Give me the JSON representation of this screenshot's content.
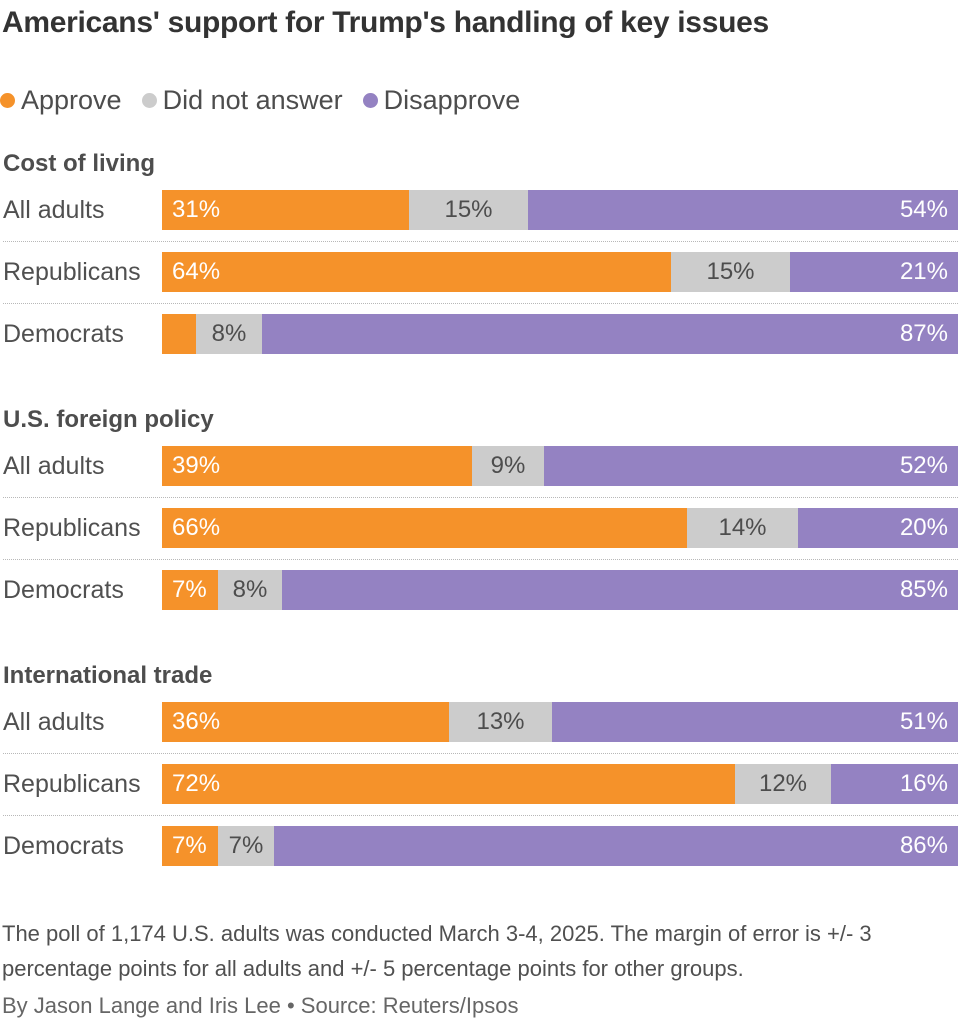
{
  "chart_data": {
    "type": "bar",
    "orientation": "horizontal",
    "stacked": true,
    "title": "Americans' support for Trump's handling of key issues",
    "legend": [
      {
        "name": "Approve",
        "color": "#f5922a"
      },
      {
        "name": "Did not answer",
        "color": "#cccccc"
      },
      {
        "name": "Disapprove",
        "color": "#9482c2"
      }
    ],
    "legend_position": "top-left",
    "xlim": [
      0,
      100
    ],
    "groups": [
      {
        "title": "Cost of living",
        "rows": [
          {
            "label": "All adults",
            "values": [
              31,
              15,
              54
            ],
            "labels": [
              "31%",
              "15%",
              "54%"
            ]
          },
          {
            "label": "Republicans",
            "values": [
              64,
              15,
              21
            ],
            "labels": [
              "64%",
              "15%",
              "21%"
            ]
          },
          {
            "label": "Democrats",
            "values": [
              4.3,
              8.3,
              87.4
            ],
            "labels": [
              "",
              "8%",
              "87%"
            ]
          }
        ]
      },
      {
        "title": "U.S. foreign policy",
        "rows": [
          {
            "label": "All adults",
            "values": [
              39,
              9,
              52
            ],
            "labels": [
              "39%",
              "9%",
              "52%"
            ]
          },
          {
            "label": "Republicans",
            "values": [
              66,
              14,
              20
            ],
            "labels": [
              "66%",
              "14%",
              "20%"
            ]
          },
          {
            "label": "Democrats",
            "values": [
              7,
              8,
              85
            ],
            "labels": [
              "7%",
              "8%",
              "85%"
            ]
          }
        ]
      },
      {
        "title": "International trade",
        "rows": [
          {
            "label": "All adults",
            "values": [
              36,
              13,
              51
            ],
            "labels": [
              "36%",
              "13%",
              "51%"
            ]
          },
          {
            "label": "Republicans",
            "values": [
              72,
              12,
              16
            ],
            "labels": [
              "72%",
              "12%",
              "16%"
            ]
          },
          {
            "label": "Democrats",
            "values": [
              7,
              7,
              86
            ],
            "labels": [
              "7%",
              "7%",
              "86%"
            ]
          }
        ]
      }
    ]
  },
  "note": "The poll of 1,174 U.S. adults was conducted March 3-4, 2025. The margin of error is +/- 3 percentage points for all adults and +/- 5 percentage points for other groups.",
  "byline": "By Jason Lange and Iris Lee • Source: Reuters/Ipsos"
}
